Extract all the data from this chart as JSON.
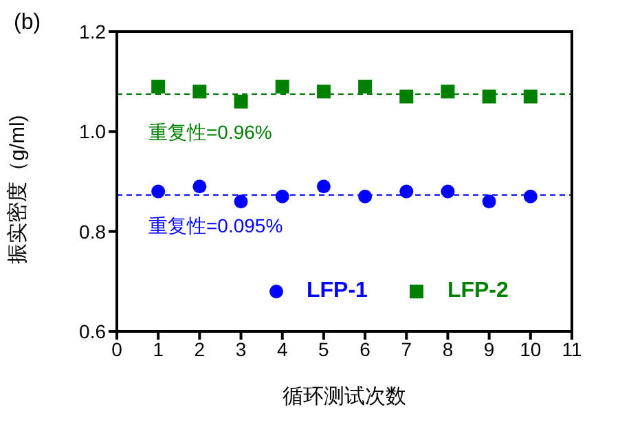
{
  "chart_data": {
    "type": "scatter",
    "xlabel": "循环测试次数",
    "ylabel": "振实密度（g/ml)",
    "annotations": [
      "(b)",
      "重复性=0.96%",
      "重复性=0.095%"
    ],
    "x": [
      1,
      2,
      3,
      4,
      5,
      6,
      7,
      8,
      9,
      10
    ],
    "series": [
      {
        "name": "LFP-1",
        "color": "#0000ff",
        "marker": "circle",
        "values": [
          0.88,
          0.89,
          0.86,
          0.87,
          0.89,
          0.87,
          0.88,
          0.88,
          0.86,
          0.87
        ]
      },
      {
        "name": "LFP-2",
        "color": "#008000",
        "marker": "square",
        "values": [
          1.09,
          1.08,
          1.06,
          1.09,
          1.08,
          1.09,
          1.07,
          1.08,
          1.07,
          1.07
        ]
      }
    ],
    "ref_lines": [
      {
        "axis": "y",
        "value": 1.075,
        "color": "#008000",
        "line_style": "dashed"
      },
      {
        "axis": "y",
        "value": 0.873,
        "color": "#0000ff",
        "line_style": "dashed"
      }
    ],
    "xlim": [
      0,
      11
    ],
    "xticks": [
      0,
      1,
      2,
      3,
      4,
      5,
      6,
      7,
      8,
      9,
      10,
      11
    ],
    "ylim": [
      0.6,
      1.2
    ],
    "yticks": [
      0.6,
      0.8,
      {
        "value": 1,
        "label": "1.0"
      },
      1.2
    ],
    "grid": false,
    "legend": "bottom right"
  }
}
